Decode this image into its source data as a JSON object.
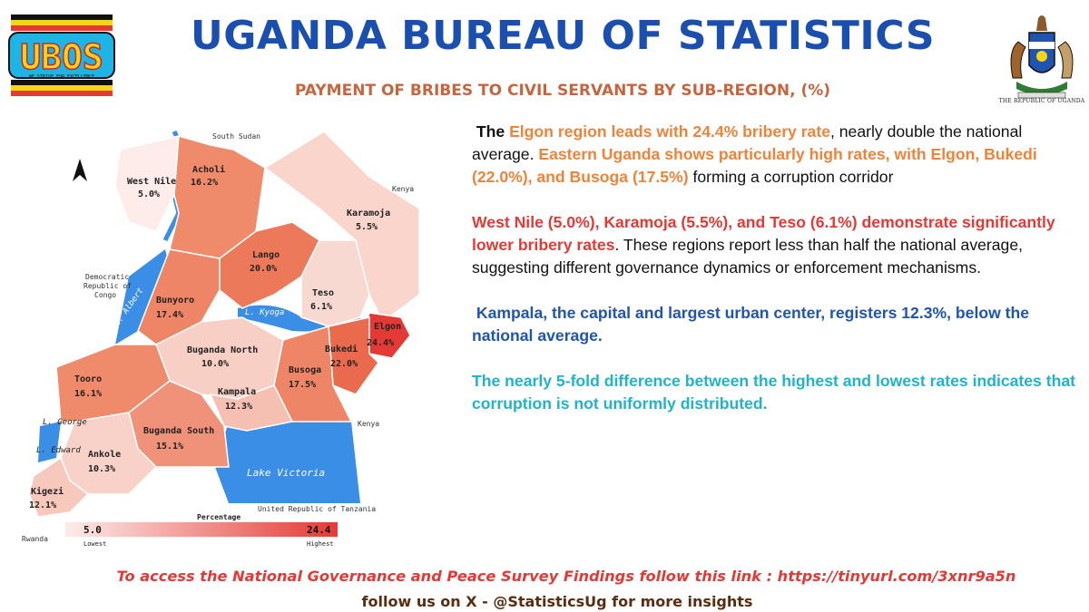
{
  "header": {
    "title": "UGANDA BUREAU OF STATISTICS",
    "subtitle": "PAYMENT OF BRIBES TO CIVIL SERVANTS BY SUB-REGION, (%)",
    "logo_text": "UBOS",
    "logo_motto": "WE STRIVE FOR EXCELLENCE",
    "coat_caption": "THE REPUBLIC OF UGANDA"
  },
  "map": {
    "regions": [
      {
        "name": "West Nile",
        "value": "5.0%"
      },
      {
        "name": "Acholi",
        "value": "16.2%"
      },
      {
        "name": "Karamoja",
        "value": "5.5%"
      },
      {
        "name": "Lango",
        "value": "20.0%"
      },
      {
        "name": "Teso",
        "value": "6.1%"
      },
      {
        "name": "Bunyoro",
        "value": "17.4%"
      },
      {
        "name": "Elgon",
        "value": "24.4%"
      },
      {
        "name": "Buganda North",
        "value": "10.0%"
      },
      {
        "name": "Bukedi",
        "value": "22.0%"
      },
      {
        "name": "Busoga",
        "value": "17.5%"
      },
      {
        "name": "Tooro",
        "value": "16.1%"
      },
      {
        "name": "Kampala",
        "value": "12.3%"
      },
      {
        "name": "Buganda South",
        "value": "15.1%"
      },
      {
        "name": "Ankole",
        "value": "10.3%"
      },
      {
        "name": "Kigezi",
        "value": "12.1%"
      }
    ],
    "neighbors": {
      "south_sudan": "South Sudan",
      "kenya_north": "Kenya",
      "kenya_south": "Kenya",
      "drc": [
        "Democratic",
        "Republic of",
        "Congo"
      ],
      "tanzania": "United Republic of Tanzania",
      "rwanda": "Rwanda"
    },
    "water": {
      "lake_victoria": "Lake Victoria",
      "l_albert": "L. Albert",
      "l_kyoga": "L. Kyoga",
      "l_george": "L. George",
      "l_edward": "L. Edward"
    },
    "legend": {
      "title": "Percentage",
      "min": "5.0",
      "max": "24.4",
      "min_label": "Lowest",
      "max_label": "Highest",
      "color_low": "#fdecea",
      "color_high": "#e53935"
    }
  },
  "text": {
    "p1_a": "The ",
    "p1_b": "Elgon region leads with 24.4% bribery rate",
    "p1_c": ", nearly double the national average. ",
    "p1_d": "Eastern Uganda shows particularly high rates, with Elgon, Bukedi (22.0%), and Busoga (17.5%)",
    "p1_e": " forming a corruption corridor",
    "p2_a": "West Nile (5.0%), Karamoja (5.5%), and Teso (6.1%) demonstrate significantly lower bribery rates",
    "p2_b": ". These regions report less than half the national average, suggesting different governance dynamics or enforcement mechanisms.",
    "p3": "Kampala, the capital and largest urban center, registers 12.3%, below the national average.",
    "p4": "The nearly 5-fold difference between the highest and lowest rates indicates that corruption is not uniformly distributed."
  },
  "footer": {
    "link_line": "To access the  National Governance and Peace Survey Findings follow this link : https://tinyurl.com/3xnr9a5n",
    "follow_line": "follow us on X - @StatisticsUg for more insights"
  },
  "colors": {
    "title": "#1a4fb0",
    "subtitle": "#c8643e",
    "orange": "#f0833a",
    "red": "#e53935",
    "blue": "#1f55b0",
    "cyan": "#1fb4c9",
    "water": "#3a8ee6"
  }
}
